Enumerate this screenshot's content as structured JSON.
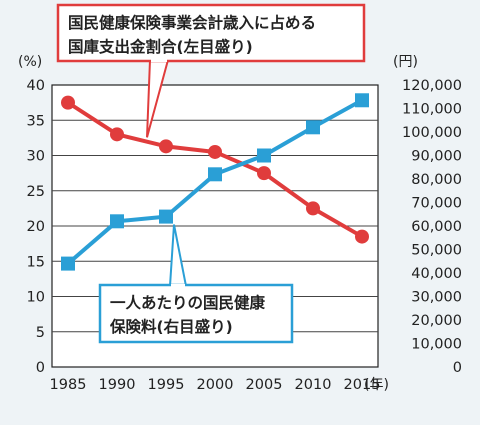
{
  "chart_data": {
    "type": "line",
    "x": [
      1985,
      1990,
      1995,
      2000,
      2005,
      2010,
      2015
    ],
    "x_tick_labels": [
      "1985",
      "1990",
      "1995",
      "2000",
      "2005",
      "2010",
      "2015"
    ],
    "x_unit": "(年)",
    "y_left_unit": "(%)",
    "y_right_unit": "(円)",
    "y_left_ticks": [
      "0",
      "5",
      "10",
      "15",
      "20",
      "25",
      "30",
      "35",
      "40"
    ],
    "y_right_ticks": [
      "0",
      "10,000",
      "20,000",
      "30,000",
      "40,000",
      "50,000",
      "60,000",
      "70,000",
      "80,000",
      "90,000",
      "100,000",
      "110,000",
      "120,000"
    ],
    "y_left_range": [
      0,
      40
    ],
    "y_right_range": [
      0,
      120000
    ],
    "grid": "horizontal",
    "series": [
      {
        "name": "国民健康保険事業会計歳入に占める国庫支出金割合(左目盛り)",
        "name_lines": [
          "国民健康保険事業会計歳入に占める",
          "国庫支出金割合(左目盛り)"
        ],
        "axis": "left",
        "marker": "circle",
        "color": "#e03c3c",
        "values": [
          37.5,
          33.0,
          31.3,
          30.5,
          27.5,
          22.5,
          18.5
        ]
      },
      {
        "name": "一人あたりの国民健康保険料(右目盛り)",
        "name_lines": [
          "一人あたりの国民健康",
          "保険料(右目盛り)"
        ],
        "axis": "right",
        "marker": "square",
        "color": "#2a9fd6",
        "values": [
          44000,
          62000,
          64000,
          82000,
          90000,
          102000,
          113500
        ]
      }
    ]
  }
}
